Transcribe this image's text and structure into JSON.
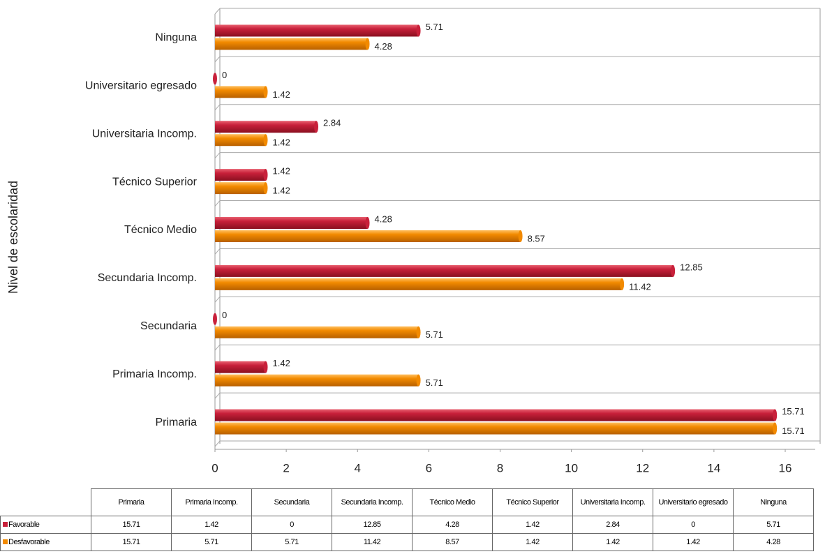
{
  "chart_data": {
    "type": "bar",
    "orientation": "horizontal",
    "y_axis_label": "Nivel de escolaridad",
    "categories": [
      "Primaria",
      "Primaria Incomp.",
      "Secundaria",
      "Secundaria Incomp.",
      "Técnico Medio",
      "Técnico Superior",
      "Universitaria Incomp.",
      "Universitario egresado",
      "Ninguna"
    ],
    "series": [
      {
        "name": "Favorable",
        "color": "#c8203a",
        "values": [
          15.71,
          1.42,
          0,
          12.85,
          4.28,
          1.42,
          2.84,
          0,
          5.71
        ]
      },
      {
        "name": "Desfavorable",
        "color": "#f28a00",
        "values": [
          15.71,
          5.71,
          5.71,
          11.42,
          8.57,
          1.42,
          1.42,
          1.42,
          4.28
        ]
      }
    ],
    "xlim": [
      0,
      16
    ],
    "xticks": [
      0,
      2,
      4,
      6,
      8,
      10,
      12,
      14,
      16
    ],
    "grid": true
  }
}
